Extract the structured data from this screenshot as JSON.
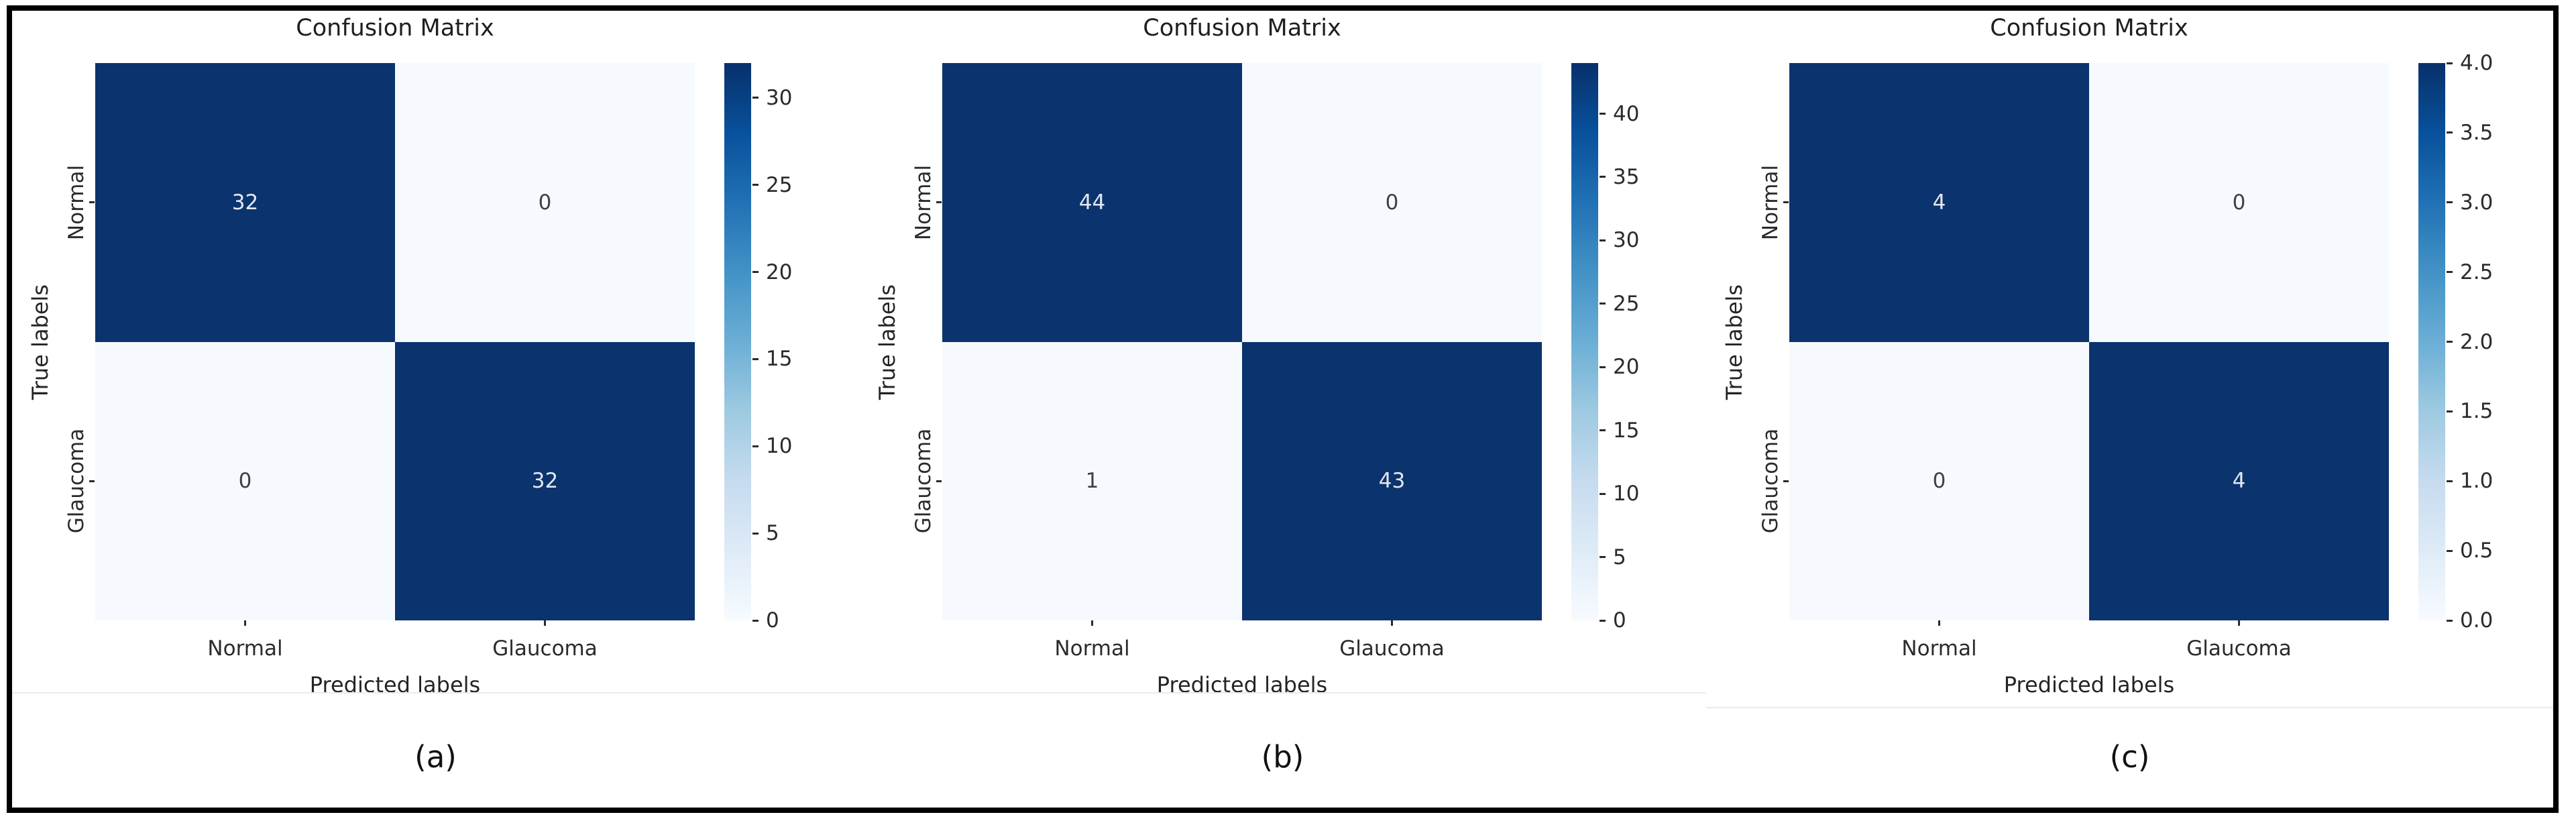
{
  "page": {
    "background": "#ffffff",
    "frame_border_color": "#000000"
  },
  "chart_data": [
    {
      "type": "heatmap",
      "panel_id": "a",
      "title": "Confusion Matrix",
      "xlabel": "Predicted labels",
      "ylabel": "True labels",
      "x_categories": [
        "Normal",
        "Glaucoma"
      ],
      "y_categories": [
        "Normal",
        "Glaucoma"
      ],
      "values": [
        [
          32,
          0
        ],
        [
          0,
          32
        ]
      ],
      "annotations": [
        [
          "32",
          "0"
        ],
        [
          "0",
          "32"
        ]
      ],
      "vmin": 0,
      "vmax": 32,
      "colormap": "Blues",
      "legend_position": "right-colorbar",
      "colorbar_ticks": [
        {
          "label": "0",
          "value": 0
        },
        {
          "label": "5",
          "value": 5
        },
        {
          "label": "10",
          "value": 10
        },
        {
          "label": "15",
          "value": 15
        },
        {
          "label": "20",
          "value": 20
        },
        {
          "label": "25",
          "value": 25
        },
        {
          "label": "30",
          "value": 30
        }
      ],
      "caption": "(a)"
    },
    {
      "type": "heatmap",
      "panel_id": "b",
      "title": "Confusion Matrix",
      "xlabel": "Predicted labels",
      "ylabel": "True labels",
      "x_categories": [
        "Normal",
        "Glaucoma"
      ],
      "y_categories": [
        "Normal",
        "Glaucoma"
      ],
      "values": [
        [
          44,
          0
        ],
        [
          1,
          43
        ]
      ],
      "annotations": [
        [
          "44",
          "0"
        ],
        [
          "1",
          "43"
        ]
      ],
      "vmin": 0,
      "vmax": 44,
      "colormap": "Blues",
      "legend_position": "right-colorbar",
      "colorbar_ticks": [
        {
          "label": "0",
          "value": 0
        },
        {
          "label": "5",
          "value": 5
        },
        {
          "label": "10",
          "value": 10
        },
        {
          "label": "15",
          "value": 15
        },
        {
          "label": "20",
          "value": 20
        },
        {
          "label": "25",
          "value": 25
        },
        {
          "label": "30",
          "value": 30
        },
        {
          "label": "35",
          "value": 35
        },
        {
          "label": "40",
          "value": 40
        }
      ],
      "caption": "(b)"
    },
    {
      "type": "heatmap",
      "panel_id": "c",
      "title": "Confusion Matrix",
      "xlabel": "Predicted labels",
      "ylabel": "True labels",
      "x_categories": [
        "Normal",
        "Glaucoma"
      ],
      "y_categories": [
        "Normal",
        "Glaucoma"
      ],
      "values": [
        [
          4,
          0
        ],
        [
          0,
          4
        ]
      ],
      "annotations": [
        [
          "4",
          "0"
        ],
        [
          "0",
          "4"
        ]
      ],
      "vmin": 0,
      "vmax": 4,
      "colormap": "Blues",
      "legend_position": "right-colorbar",
      "colorbar_ticks": [
        {
          "label": "0.0",
          "value": 0
        },
        {
          "label": "0.5",
          "value": 0.5
        },
        {
          "label": "1.0",
          "value": 1
        },
        {
          "label": "1.5",
          "value": 1.5
        },
        {
          "label": "2.0",
          "value": 2
        },
        {
          "label": "2.5",
          "value": 2.5
        },
        {
          "label": "3.0",
          "value": 3
        },
        {
          "label": "3.5",
          "value": 3.5
        },
        {
          "label": "4.0",
          "value": 4
        }
      ],
      "caption": "(c)"
    }
  ],
  "colors": {
    "heatmap_dark": "#0b336e",
    "heatmap_light": "#f6fafe",
    "annotation_on_dark": "#e3e8f0",
    "annotation_on_light": "#404040",
    "axis_text": "#242424",
    "figure_edge_line": "#eaeaea",
    "colorbar_gradient_top_to_bottom": [
      "#08306b",
      "#08519c",
      "#2171b5",
      "#4292c6",
      "#6baed6",
      "#9ecae1",
      "#c6dbef",
      "#deebf7",
      "#f7fbff"
    ]
  }
}
